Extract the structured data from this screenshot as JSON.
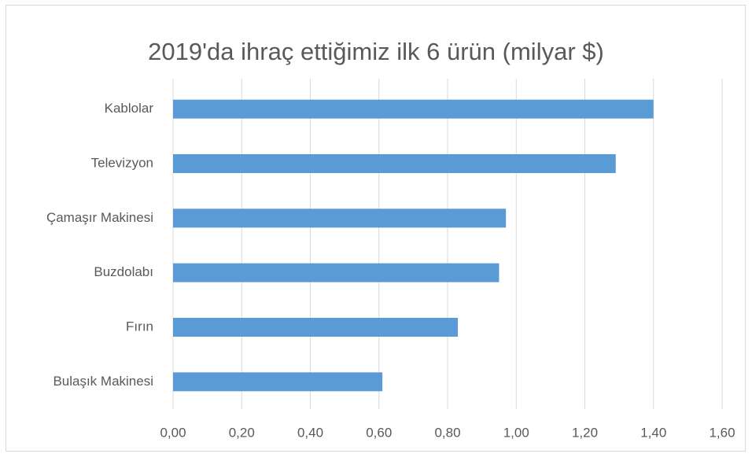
{
  "chart_data": {
    "type": "bar",
    "orientation": "horizontal",
    "title": "2019'da ihraç ettiğimiz ilk 6 ürün (milyar $)",
    "categories": [
      "Kablolar",
      "Televizyon",
      "Çamaşır Makinesi",
      "Buzdolabı",
      "Fırın",
      "Bulaşık Makinesi"
    ],
    "values": [
      1.4,
      1.29,
      0.97,
      0.95,
      0.83,
      0.61
    ],
    "color": "#5b9bd5",
    "xlim": [
      0,
      1.6
    ],
    "xticks": [
      {
        "value": 0,
        "label": "0,00"
      },
      {
        "value": 0.2,
        "label": "0,20"
      },
      {
        "value": 0.4,
        "label": "0,40"
      },
      {
        "value": 0.6,
        "label": "0,60"
      },
      {
        "value": 0.8,
        "label": "0,80"
      },
      {
        "value": 1.0,
        "label": "1,00"
      },
      {
        "value": 1.2,
        "label": "1,20"
      },
      {
        "value": 1.4,
        "label": "1,40"
      },
      {
        "value": 1.6,
        "label": "1,60"
      }
    ],
    "grid": true
  }
}
